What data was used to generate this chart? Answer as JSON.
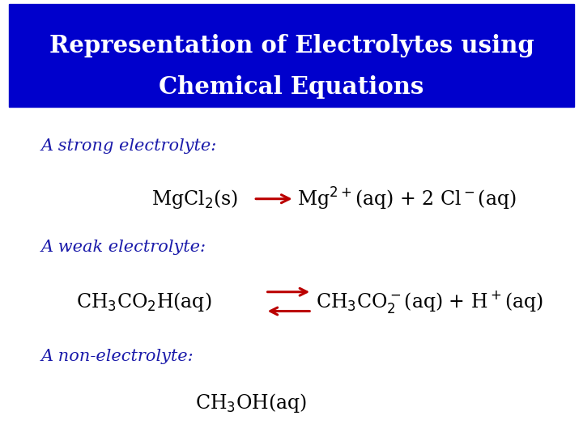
{
  "title_line1": "Representation of Electrolytes using",
  "title_line2": "Chemical Equations",
  "title_bg_color": "#0000CC",
  "title_text_color": "#FFFFFF",
  "body_bg_color": "#FFFFFF",
  "label_color": "#1a1aaa",
  "chem_color": "#000000",
  "arrow_color": "#BB0000",
  "strong_label": "A strong electrolyte:",
  "weak_label": "A weak electrolyte:",
  "nonelec_label": "A non-electrolyte:",
  "title_fontsize": 21,
  "label_fontsize": 15,
  "chem_fontsize": 17
}
